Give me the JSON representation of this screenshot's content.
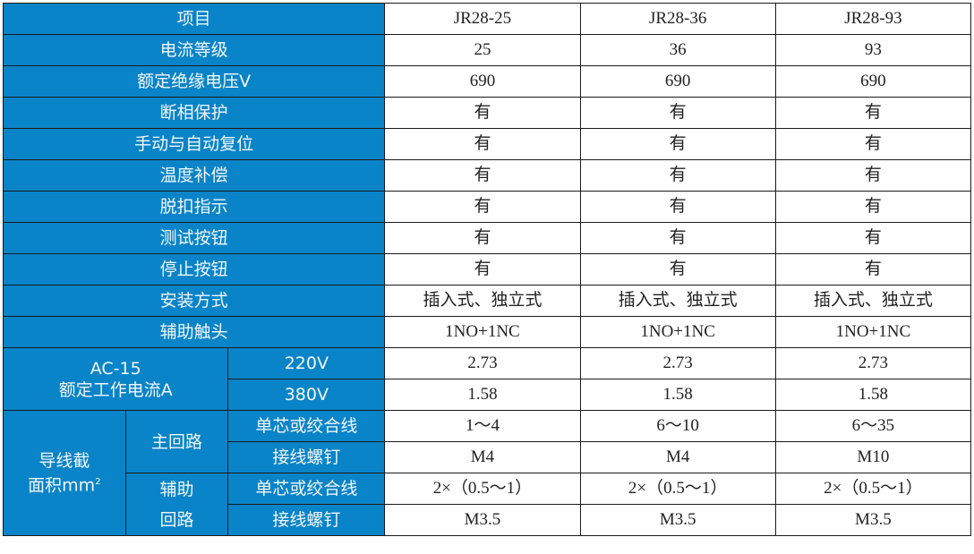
{
  "header": {
    "label": "项目",
    "models": [
      "JR28-25",
      "JR28-36",
      "JR28-93"
    ]
  },
  "rows": [
    {
      "label": "电流等级",
      "values": [
        "25",
        "36",
        "93"
      ]
    },
    {
      "label": "额定绝缘电压V",
      "values": [
        "690",
        "690",
        "690"
      ]
    },
    {
      "label": "断相保护",
      "values": [
        "有",
        "有",
        "有"
      ]
    },
    {
      "label": "手动与自动复位",
      "values": [
        "有",
        "有",
        "有"
      ]
    },
    {
      "label": "温度补偿",
      "values": [
        "有",
        "有",
        "有"
      ]
    },
    {
      "label": "脱扣指示",
      "values": [
        "有",
        "有",
        "有"
      ]
    },
    {
      "label": "测试按钮",
      "values": [
        "有",
        "有",
        "有"
      ]
    },
    {
      "label": "停止按钮",
      "values": [
        "有",
        "有",
        "有"
      ]
    },
    {
      "label": "安装方式",
      "values": [
        "插入式、独立式",
        "插入式、独立式",
        "插入式、独立式"
      ]
    },
    {
      "label": "辅助触头",
      "values": [
        "1NO+1NC",
        "1NO+1NC",
        "1NO+1NC"
      ]
    }
  ],
  "ac15": {
    "label_line1": "AC-15",
    "label_line2": "额定工作电流A",
    "rows": [
      {
        "label": "220V",
        "values": [
          "2.73",
          "2.73",
          "2.73"
        ]
      },
      {
        "label": "380V",
        "values": [
          "1.58",
          "1.58",
          "1.58"
        ]
      }
    ]
  },
  "wire": {
    "label_line1": "导线截",
    "label_line2": "面积mm",
    "label_sup": "2",
    "main": {
      "label": "主回路",
      "rows": [
        {
          "label": "单芯或绞合线",
          "values": [
            "1～4",
            "6～10",
            "6～35"
          ]
        },
        {
          "label": "接线螺钉",
          "values": [
            "M4",
            "M4",
            "M10"
          ]
        }
      ]
    },
    "aux": {
      "label_line1": "辅助",
      "label_line2": "回路",
      "rows": [
        {
          "label": "单芯或绞合线",
          "values": [
            "2×（0.5～1）",
            "2×（0.5～1）",
            "2×（0.5～1）"
          ]
        },
        {
          "label": "接线螺钉",
          "values": [
            "M3.5",
            "M3.5",
            "M3.5"
          ]
        }
      ]
    }
  },
  "colors": {
    "header_blue": "#0a84c8"
  }
}
